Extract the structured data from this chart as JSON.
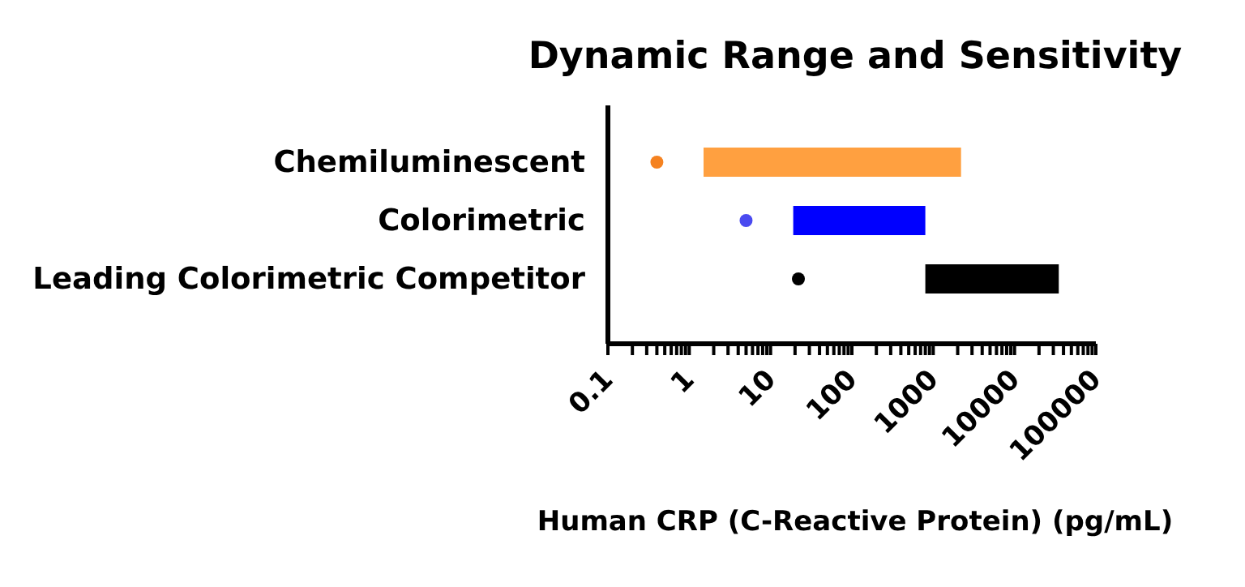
{
  "chart_data": {
    "type": "bar",
    "orientation": "horizontal",
    "title": "Dynamic Range and Sensitivity",
    "xlabel": "Human CRP (C-Reactive Protein) (pg/mL)",
    "categories": [
      "Chemiluminescent",
      "Colorimetric",
      "Leading Colorimetric Competitor"
    ],
    "series": [
      {
        "type": "bar",
        "base": [
          1.5,
          19,
          800
        ],
        "values": [
          2198.5,
          781,
          34200
        ],
        "colors": [
          "#ffa040",
          "#0000ff",
          "#000000"
        ]
      },
      {
        "type": "scatter",
        "x": [
          "Chemiluminescent",
          "Colorimetric",
          "Leading Colorimetric Competitor"
        ],
        "values": [
          0.4,
          5,
          22
        ],
        "colors": [
          "#f58220",
          "#4a4af0",
          "#000000"
        ]
      }
    ],
    "log": "x",
    "xlim": [
      0.1,
      100000
    ],
    "xticks": [
      0.1,
      {
        "value": 0.2,
        "label": null
      },
      {
        "value": 0.3,
        "label": null
      },
      {
        "value": 0.4,
        "label": null
      },
      {
        "value": 0.5,
        "label": null
      },
      {
        "value": 0.6,
        "label": null
      },
      {
        "value": 0.7,
        "label": null
      },
      {
        "value": 0.8,
        "label": null
      },
      {
        "value": 0.9,
        "label": null
      },
      1,
      {
        "value": 2,
        "label": null
      },
      {
        "value": 3,
        "label": null
      },
      {
        "value": 4,
        "label": null
      },
      {
        "value": 5,
        "label": null
      },
      {
        "value": 6,
        "label": null
      },
      {
        "value": 7,
        "label": null
      },
      {
        "value": 8,
        "label": null
      },
      {
        "value": 9,
        "label": null
      },
      10,
      {
        "value": 20,
        "label": null
      },
      {
        "value": 30,
        "label": null
      },
      {
        "value": 40,
        "label": null
      },
      {
        "value": 50,
        "label": null
      },
      {
        "value": 60,
        "label": null
      },
      {
        "value": 70,
        "label": null
      },
      {
        "value": 80,
        "label": null
      },
      {
        "value": 90,
        "label": null
      },
      100,
      {
        "value": 200,
        "label": null
      },
      {
        "value": 300,
        "label": null
      },
      {
        "value": 400,
        "label": null
      },
      {
        "value": 500,
        "label": null
      },
      {
        "value": 600,
        "label": null
      },
      {
        "value": 700,
        "label": null
      },
      {
        "value": 800,
        "label": null
      },
      {
        "value": 900,
        "label": null
      },
      1000,
      {
        "value": 2000,
        "label": null
      },
      {
        "value": 3000,
        "label": null
      },
      {
        "value": 4000,
        "label": null
      },
      {
        "value": 5000,
        "label": null
      },
      {
        "value": 6000,
        "label": null
      },
      {
        "value": 7000,
        "label": null
      },
      {
        "value": 8000,
        "label": null
      },
      {
        "value": 9000,
        "label": null
      },
      10000,
      {
        "value": 20000,
        "label": null
      },
      {
        "value": 30000,
        "label": null
      },
      {
        "value": 40000,
        "label": null
      },
      {
        "value": 50000,
        "label": null
      },
      {
        "value": 60000,
        "label": null
      },
      {
        "value": 70000,
        "label": null
      },
      {
        "value": 80000,
        "label": null
      },
      {
        "value": 90000,
        "label": null
      },
      100000
    ],
    "grid": false,
    "legend": false
  }
}
